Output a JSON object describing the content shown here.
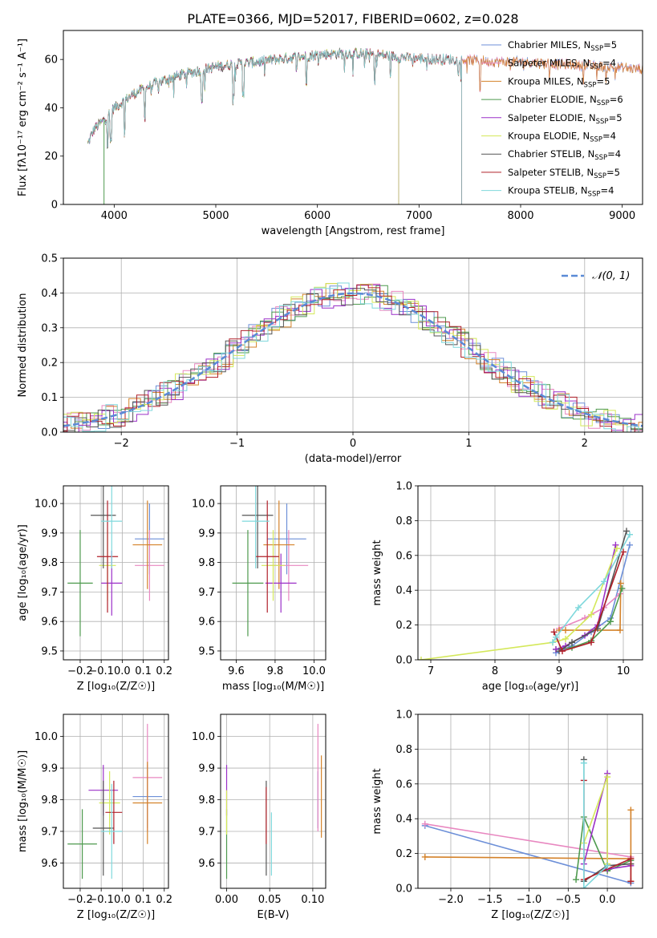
{
  "figure": {
    "title": "PLATE=0366, MJD=52017, FIBERID=0602, z=0.028"
  },
  "chart_data": [
    {
      "id": "spectrum",
      "type": "line",
      "xlabel": "wavelength [Angstrom, rest frame]",
      "ylabel": "Flux [fλ10⁻¹⁷ erg cm⁻² s⁻¹ A⁻¹]",
      "xlim": [
        3500,
        9200
      ],
      "ylim": [
        0,
        72
      ],
      "xticks": [
        4000,
        5000,
        6000,
        7000,
        8000,
        9000
      ],
      "yticks": [
        0,
        20,
        40,
        60
      ],
      "grid": false,
      "legend_position": "top-right",
      "continuum_x": [
        3740,
        3800,
        3900,
        4000,
        4100,
        4200,
        4400,
        4600,
        4800,
        5000,
        5200,
        5400,
        5600,
        5800,
        6000,
        6200,
        6400,
        6600,
        6800,
        7000,
        7200,
        7400,
        7600,
        7800,
        8000,
        8200,
        8400,
        8600,
        8800,
        9000,
        9200
      ],
      "continuum_y": [
        25,
        31,
        35,
        40,
        43,
        46,
        50,
        53,
        55,
        57,
        58,
        59,
        60,
        61,
        62,
        62.5,
        62.5,
        62,
        61,
        60.5,
        60,
        60,
        59.5,
        59,
        59,
        58.5,
        58,
        57.5,
        57,
        56.5,
        56
      ],
      "series": [
        {
          "name": "Chabrier MILES, N_SSP=5",
          "color": "#6c8fd8",
          "end": 9200,
          "drop": null
        },
        {
          "name": "Salpeter MILES, N_SSP=4",
          "color": "#e887c0",
          "end": 9200,
          "drop": null
        },
        {
          "name": "Kroupa MILES, N_SSP=5",
          "color": "#d4822a",
          "end": 9200,
          "drop": null
        },
        {
          "name": "Chabrier ELODIE, N_SSP=6",
          "color": "#4e9a4e",
          "end": 6800,
          "drop": 3900
        },
        {
          "name": "Salpeter ELODIE, N_SSP=5",
          "color": "#9b30c8",
          "end": 6800,
          "drop": null
        },
        {
          "name": "Kroupa ELODIE, N_SSP=4",
          "color": "#d4e85a",
          "end": 6800,
          "drop": null
        },
        {
          "name": "Chabrier STELIB, N_SSP=4",
          "color": "#555555",
          "end": 7420,
          "drop": null
        },
        {
          "name": "Salpeter STELIB, N_SSP=5",
          "color": "#b0202a",
          "end": 7420,
          "drop": null
        },
        {
          "name": "Kroupa STELIB, N_SSP=4",
          "color": "#7fd8dc",
          "end": 7420,
          "drop": null
        }
      ],
      "legend_main": [
        "Chabrier MILES, N",
        "Salpeter MILES, N",
        "Kroupa MILES, N",
        "Chabrier ELODIE, N",
        "Salpeter ELODIE, N",
        "Kroupa ELODIE, N",
        "Chabrier STELIB, N",
        "Salpeter STELIB, N",
        "Kroupa STELIB, N"
      ],
      "legend_sub": "SSP",
      "legend_val": [
        "=5",
        "=4",
        "=5",
        "=6",
        "=5",
        "=4",
        "=4",
        "=5",
        "=4"
      ]
    },
    {
      "id": "residual-hist",
      "type": "bar",
      "xlabel": "(data-model)/error",
      "ylabel": "Normed distribution",
      "xlim": [
        -2.5,
        2.5
      ],
      "ylim": [
        0,
        0.5
      ],
      "xticks": [
        -2,
        -1,
        0,
        1,
        2
      ],
      "xtick_labels": [
        "−2",
        "−1",
        "0",
        "1",
        "2"
      ],
      "yticks": [
        0.0,
        0.1,
        0.2,
        0.3,
        0.4,
        0.5
      ],
      "ytick_labels": [
        "0.0",
        "0.1",
        "0.2",
        "0.3",
        "0.4",
        "0.5"
      ],
      "grid": true,
      "bin_width": 0.1,
      "legend_label": "𝒩(0, 1)",
      "legend_position": "top-right",
      "gaussian": {
        "mean": 0,
        "sigma": 1,
        "color": "#5a8ad6"
      }
    },
    {
      "id": "age-vs-Z",
      "type": "scatter",
      "xlabel": "Z [log₁₀(Z/Z☉)]",
      "ylabel": "age  [log₁₀(age/yr)]",
      "xlim": [
        -0.28,
        0.22
      ],
      "ylim": [
        9.47,
        10.06
      ],
      "xticks": [
        -0.2,
        -0.1,
        0.0,
        0.1,
        0.2
      ],
      "xtick_labels": [
        "−0.2",
        "−0.1",
        "0.0",
        "0.1",
        "0.2"
      ],
      "yticks": [
        9.5,
        9.6,
        9.7,
        9.8,
        9.9,
        10.0
      ],
      "ytick_labels": [
        "9.5",
        "9.6",
        "9.7",
        "9.8",
        "9.9",
        "10.0"
      ],
      "grid": true,
      "points": [
        {
          "x": 0.13,
          "y": 9.88,
          "xerr": 0.07,
          "yerr": 0.12,
          "color": "#6c8fd8"
        },
        {
          "x": 0.13,
          "y": 9.79,
          "xerr": 0.07,
          "yerr": 0.12,
          "color": "#e887c0"
        },
        {
          "x": 0.12,
          "y": 9.86,
          "xerr": 0.07,
          "yerr": 0.15,
          "color": "#d4822a"
        },
        {
          "x": -0.2,
          "y": 9.73,
          "xerr": 0.06,
          "yerr": 0.18,
          "color": "#4e9a4e"
        },
        {
          "x": -0.05,
          "y": 9.73,
          "xerr": 0.05,
          "yerr": 0.11,
          "color": "#9b30c8"
        },
        {
          "x": -0.07,
          "y": 9.79,
          "xerr": 0.04,
          "yerr": 0.12,
          "color": "#d4e85a"
        },
        {
          "x": -0.09,
          "y": 9.96,
          "xerr": 0.06,
          "yerr": 0.18,
          "color": "#555555"
        },
        {
          "x": -0.07,
          "y": 9.82,
          "xerr": 0.05,
          "yerr": 0.19,
          "color": "#b0202a"
        },
        {
          "x": -0.05,
          "y": 9.94,
          "xerr": 0.05,
          "yerr": 0.16,
          "color": "#7fd8dc"
        }
      ]
    },
    {
      "id": "age-vs-mass",
      "type": "scatter",
      "xlabel": "mass [log₁₀(M/M☉)]",
      "ylabel": "",
      "xlim": [
        9.52,
        10.06
      ],
      "ylim": [
        9.47,
        10.06
      ],
      "xticks": [
        9.6,
        9.8,
        10.0
      ],
      "xtick_labels": [
        "9.6",
        "9.8",
        "10.0"
      ],
      "yticks": [
        9.5,
        9.6,
        9.7,
        9.8,
        9.9,
        10.0
      ],
      "ytick_labels": [
        "9.5",
        "9.6",
        "9.7",
        "9.8",
        "9.9",
        "10.0"
      ],
      "grid": true,
      "points": [
        {
          "x": 9.86,
          "y": 9.88,
          "xerr": 0.1,
          "yerr": 0.12,
          "color": "#6c8fd8"
        },
        {
          "x": 9.87,
          "y": 9.79,
          "xerr": 0.1,
          "yerr": 0.12,
          "color": "#e887c0"
        },
        {
          "x": 9.82,
          "y": 9.86,
          "xerr": 0.08,
          "yerr": 0.15,
          "color": "#d4822a"
        },
        {
          "x": 9.66,
          "y": 9.73,
          "xerr": 0.08,
          "yerr": 0.18,
          "color": "#4e9a4e"
        },
        {
          "x": 9.83,
          "y": 9.73,
          "xerr": 0.08,
          "yerr": 0.1,
          "color": "#9b30c8"
        },
        {
          "x": 9.79,
          "y": 9.79,
          "xerr": 0.06,
          "yerr": 0.12,
          "color": "#d4e85a"
        },
        {
          "x": 9.71,
          "y": 9.96,
          "xerr": 0.08,
          "yerr": 0.18,
          "color": "#555555"
        },
        {
          "x": 9.76,
          "y": 9.82,
          "xerr": 0.06,
          "yerr": 0.19,
          "color": "#b0202a"
        },
        {
          "x": 9.7,
          "y": 9.94,
          "xerr": 0.07,
          "yerr": 0.16,
          "color": "#7fd8dc"
        }
      ]
    },
    {
      "id": "weight-vs-age",
      "type": "line",
      "xlabel": "age  [log₁₀(age/yr)]",
      "ylabel": "mass weight",
      "xlim": [
        6.8,
        10.3
      ],
      "ylim": [
        0,
        1
      ],
      "xticks": [
        7,
        8,
        9,
        10
      ],
      "xtick_labels": [
        "7",
        "8",
        "9",
        "10"
      ],
      "yticks": [
        0.0,
        0.2,
        0.4,
        0.6,
        0.8,
        1.0
      ],
      "ytick_labels": [
        "0.0",
        "0.2",
        "0.4",
        "0.6",
        "0.8",
        "1.0"
      ],
      "grid": true,
      "series": [
        {
          "color": "#6c8fd8",
          "x": [
            8.95,
            9.2,
            9.5,
            9.8,
            10.1
          ],
          "y": [
            0.04,
            0.08,
            0.16,
            0.24,
            0.66
          ]
        },
        {
          "color": "#e887c0",
          "x": [
            9.0,
            9.4,
            9.7,
            9.95
          ],
          "y": [
            0.18,
            0.24,
            0.3,
            0.38
          ]
        },
        {
          "color": "#d4822a",
          "x": [
            9.0,
            9.1,
            9.95,
            9.96
          ],
          "y": [
            0.17,
            0.17,
            0.17,
            0.44
          ]
        },
        {
          "color": "#4e9a4e",
          "x": [
            8.95,
            9.2,
            9.5,
            9.8,
            9.98
          ],
          "y": [
            0.06,
            0.07,
            0.11,
            0.22,
            0.41
          ]
        },
        {
          "color": "#9b30c8",
          "x": [
            8.95,
            9.1,
            9.4,
            9.6,
            9.88
          ],
          "y": [
            0.06,
            0.08,
            0.14,
            0.2,
            0.66
          ]
        },
        {
          "color": "#d4e85a",
          "x": [
            6.85,
            8.9,
            9.1,
            9.5,
            9.9
          ],
          "y": [
            0.0,
            0.1,
            0.12,
            0.26,
            0.64
          ]
        },
        {
          "color": "#555555",
          "x": [
            9.0,
            9.2,
            9.6,
            10.05
          ],
          "y": [
            0.05,
            0.1,
            0.18,
            0.74
          ]
        },
        {
          "color": "#b0202a",
          "x": [
            8.92,
            9.05,
            9.5,
            10.0
          ],
          "y": [
            0.16,
            0.05,
            0.1,
            0.62
          ]
        },
        {
          "color": "#7fd8dc",
          "x": [
            8.9,
            8.95,
            9.3,
            9.7,
            10.1
          ],
          "y": [
            0.1,
            0.13,
            0.3,
            0.45,
            0.72
          ]
        }
      ]
    },
    {
      "id": "mass-vs-Z",
      "type": "scatter",
      "xlabel": "Z [log₁₀(Z/Z☉)]",
      "ylabel": "mass [log₁₀(M/M☉)]",
      "xlim": [
        -0.28,
        0.22
      ],
      "ylim": [
        9.52,
        10.07
      ],
      "xticks": [
        -0.2,
        -0.1,
        0.0,
        0.1,
        0.2
      ],
      "xtick_labels": [
        "−0.2",
        "−0.1",
        "0.0",
        "0.1",
        "0.2"
      ],
      "yticks": [
        9.6,
        9.7,
        9.8,
        9.9,
        10.0
      ],
      "ytick_labels": [
        "9.6",
        "9.7",
        "9.8",
        "9.9",
        "10.0"
      ],
      "grid": true,
      "points": [
        {
          "x": 0.12,
          "y": 9.81,
          "xerr": 0.07,
          "yerr": 0.1,
          "color": "#6c8fd8"
        },
        {
          "x": 0.12,
          "y": 9.87,
          "xerr": 0.07,
          "yerr": 0.17,
          "color": "#e887c0"
        },
        {
          "x": 0.12,
          "y": 9.79,
          "xerr": 0.07,
          "yerr": 0.13,
          "color": "#d4822a"
        },
        {
          "x": -0.19,
          "y": 9.66,
          "xerr": 0.07,
          "yerr": 0.11,
          "color": "#4e9a4e"
        },
        {
          "x": -0.09,
          "y": 9.83,
          "xerr": 0.07,
          "yerr": 0.08,
          "color": "#9b30c8"
        },
        {
          "x": -0.06,
          "y": 9.79,
          "xerr": 0.05,
          "yerr": 0.1,
          "color": "#d4e85a"
        },
        {
          "x": -0.09,
          "y": 9.71,
          "xerr": 0.05,
          "yerr": 0.15,
          "color": "#555555"
        },
        {
          "x": -0.04,
          "y": 9.76,
          "xerr": 0.04,
          "yerr": 0.1,
          "color": "#b0202a"
        },
        {
          "x": -0.05,
          "y": 9.7,
          "xerr": 0.05,
          "yerr": 0.15,
          "color": "#7fd8dc"
        }
      ]
    },
    {
      "id": "mass-vs-ebv",
      "type": "scatter",
      "xlabel": "E(B-V)",
      "ylabel": "",
      "xlim": [
        -0.007,
        0.115
      ],
      "ylim": [
        9.52,
        10.07
      ],
      "xticks": [
        0.0,
        0.05,
        0.1
      ],
      "xtick_labels": [
        "0.00",
        "0.05",
        "0.10"
      ],
      "yticks": [
        9.6,
        9.7,
        9.8,
        9.9,
        10.0
      ],
      "ytick_labels": [
        "9.6",
        "9.7",
        "9.8",
        "9.9",
        "10.0"
      ],
      "grid": true,
      "points": [
        {
          "x": 0.106,
          "y": 9.8,
          "xerr": 0,
          "yerr": 0.09,
          "color": "#6c8fd8"
        },
        {
          "x": 0.106,
          "y": 9.87,
          "xerr": 0,
          "yerr": 0.17,
          "color": "#e887c0"
        },
        {
          "x": 0.11,
          "y": 9.81,
          "xerr": 0,
          "yerr": 0.13,
          "color": "#d4822a"
        },
        {
          "x": 0.0,
          "y": 9.66,
          "xerr": 0,
          "yerr": 0.11,
          "color": "#4e9a4e"
        },
        {
          "x": 0.0,
          "y": 9.83,
          "xerr": 0,
          "yerr": 0.08,
          "color": "#9b30c8"
        },
        {
          "x": 0.0,
          "y": 9.76,
          "xerr": 0,
          "yerr": 0.07,
          "color": "#d4e85a"
        },
        {
          "x": 0.046,
          "y": 9.71,
          "xerr": 0,
          "yerr": 0.15,
          "color": "#555555"
        },
        {
          "x": 0.046,
          "y": 9.75,
          "xerr": 0,
          "yerr": 0.09,
          "color": "#b0202a"
        },
        {
          "x": 0.052,
          "y": 9.66,
          "xerr": 0,
          "yerr": 0.1,
          "color": "#7fd8dc"
        }
      ]
    },
    {
      "id": "weight-vs-Z",
      "type": "line",
      "xlabel": "Z [log₁₀(Z/Z☉)]",
      "ylabel": "mass weight",
      "xlim": [
        -2.42,
        0.45
      ],
      "ylim": [
        0,
        1
      ],
      "xticks": [
        -2.0,
        -1.5,
        -1.0,
        -0.5,
        0.0
      ],
      "xtick_labels": [
        "−2.0",
        "−1.5",
        "−1.0",
        "−0.5",
        "0.0"
      ],
      "yticks": [
        0.0,
        0.2,
        0.4,
        0.6,
        0.8,
        1.0
      ],
      "ytick_labels": [
        "0.0",
        "0.2",
        "0.4",
        "0.6",
        "0.8",
        "1.0"
      ],
      "grid": true,
      "series": [
        {
          "color": "#6c8fd8",
          "x": [
            -2.33,
            0.3
          ],
          "y": [
            0.36,
            0.03
          ]
        },
        {
          "color": "#e887c0",
          "x": [
            -2.33,
            0.3
          ],
          "y": [
            0.37,
            0.18
          ]
        },
        {
          "color": "#d4822a",
          "x": [
            -2.33,
            0.3,
            0.3,
            0.3
          ],
          "y": [
            0.18,
            0.17,
            0.45,
            0.04
          ]
        },
        {
          "color": "#4e9a4e",
          "x": [
            -0.4,
            -0.3,
            0.0,
            0.3
          ],
          "y": [
            0.05,
            0.41,
            0.1,
            0.16
          ]
        },
        {
          "color": "#9b30c8",
          "x": [
            -0.3,
            0.0,
            0.0,
            0.3
          ],
          "y": [
            0.14,
            0.66,
            0.11,
            0.13
          ]
        },
        {
          "color": "#d4e85a",
          "x": [
            -0.3,
            0.0,
            0.0
          ],
          "y": [
            0.26,
            0.64,
            0.14
          ]
        },
        {
          "color": "#555555",
          "x": [
            -0.3,
            -0.3,
            0.0,
            0.3
          ],
          "y": [
            0.74,
            0.04,
            0.13,
            0.14
          ]
        },
        {
          "color": "#b0202a",
          "x": [
            -0.3,
            -0.3,
            0.3,
            0.3
          ],
          "y": [
            0.62,
            0.05,
            0.17,
            0.04
          ]
        },
        {
          "color": "#7fd8dc",
          "x": [
            -0.3,
            -0.3,
            0.0
          ],
          "y": [
            0.72,
            0.0,
            0.13
          ]
        }
      ]
    }
  ]
}
